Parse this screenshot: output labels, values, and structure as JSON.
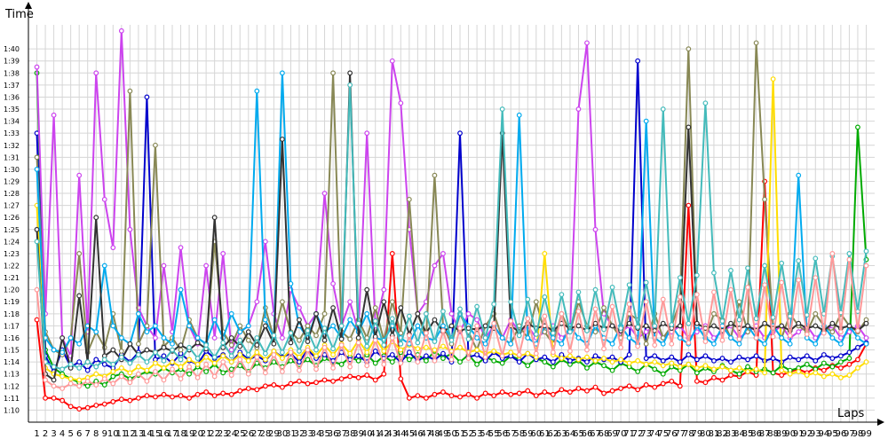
{
  "chart_data": {
    "type": "line",
    "ylabel": "Time",
    "xlabel": "Laps",
    "yticks": [
      "1:10",
      "1:11",
      "1:12",
      "1:13",
      "1:14",
      "1:15",
      "1:16",
      "1:17",
      "1:18",
      "1:19",
      "1:20",
      "1:21",
      "1:22",
      "1:23",
      "1:24",
      "1:25",
      "1:26",
      "1:27",
      "1:28",
      "1:29",
      "1:30",
      "1:31",
      "1:32",
      "1:33",
      "1:34",
      "1:35",
      "1:36",
      "1:37",
      "1:38",
      "1:39",
      "1:40"
    ],
    "ylim_seconds": [
      69,
      102
    ],
    "x": [
      1,
      2,
      3,
      4,
      5,
      6,
      7,
      8,
      9,
      10,
      11,
      12,
      13,
      14,
      15,
      16,
      17,
      18,
      19,
      20,
      21,
      22,
      23,
      24,
      25,
      26,
      27,
      28,
      29,
      30,
      31,
      32,
      33,
      34,
      35,
      36,
      37,
      38,
      39,
      40,
      41,
      42,
      43,
      44,
      45,
      46,
      47,
      48,
      49,
      50,
      51,
      52,
      53,
      54,
      55,
      56,
      57,
      58,
      59,
      60,
      61,
      62,
      63,
      64,
      65,
      66,
      67,
      68,
      69,
      70,
      71,
      72,
      73,
      74,
      75,
      76,
      77,
      78,
      79,
      80,
      81,
      82,
      83,
      84,
      85,
      86,
      87,
      88,
      89,
      90,
      91,
      92,
      93,
      94,
      95,
      96,
      97,
      98,
      99
    ],
    "xlim": [
      0,
      100
    ],
    "grid": true,
    "legend": "none",
    "series": [
      {
        "color": "#ff0000",
        "values": [
          77.5,
          71.0,
          71.0,
          70.8,
          70.3,
          70.1,
          70.2,
          70.4,
          70.5,
          70.7,
          70.9,
          70.8,
          71.0,
          71.2,
          71.1,
          71.3,
          71.1,
          71.2,
          71.0,
          71.3,
          71.5,
          71.2,
          71.4,
          71.3,
          71.6,
          71.8,
          71.7,
          72.0,
          72.1,
          71.9,
          72.2,
          72.4,
          72.2,
          72.3,
          72.5,
          72.4,
          72.6,
          72.8,
          72.7,
          72.9,
          72.5,
          73.0,
          83.0,
          72.6,
          71.0,
          71.2,
          71.0,
          71.3,
          71.5,
          71.2,
          71.1,
          71.3,
          71.0,
          71.4,
          71.2,
          71.5,
          71.3,
          71.4,
          71.6,
          71.2,
          71.5,
          71.3,
          71.7,
          71.5,
          71.8,
          71.6,
          71.9,
          71.4,
          71.6,
          71.8,
          72.0,
          71.7,
          72.1,
          71.9,
          72.2,
          72.4,
          72.0,
          87.0,
          72.4,
          72.3,
          72.7,
          72.5,
          72.9,
          72.8,
          73.2,
          72.9,
          89.0,
          73.1,
          72.9,
          73.2,
          73.4,
          73.1,
          73.5,
          73.3,
          73.7,
          73.5,
          73.8,
          74.2,
          75.5
        ]
      },
      {
        "color": "#00aa00",
        "values": [
          98.0,
          75.0,
          73.5,
          73.0,
          72.6,
          72.3,
          72.0,
          72.4,
          72.1,
          72.8,
          73.0,
          72.6,
          72.9,
          73.2,
          73.0,
          73.5,
          73.1,
          73.4,
          73.0,
          73.6,
          73.2,
          73.8,
          73.1,
          73.4,
          73.7,
          73.2,
          73.9,
          73.5,
          74.0,
          73.6,
          74.1,
          73.8,
          74.2,
          73.7,
          74.3,
          74.0,
          73.8,
          74.4,
          74.1,
          74.6,
          73.9,
          74.5,
          74.0,
          74.8,
          74.2,
          74.6,
          74.1,
          74.9,
          74.3,
          74.7,
          74.0,
          74.6,
          73.8,
          74.4,
          74.1,
          73.9,
          74.5,
          74.2,
          73.7,
          74.3,
          74.0,
          73.6,
          74.2,
          73.8,
          74.1,
          73.5,
          74.0,
          73.7,
          73.3,
          73.9,
          73.6,
          73.2,
          73.8,
          73.4,
          73.0,
          73.6,
          73.3,
          73.8,
          73.1,
          73.5,
          73.2,
          73.7,
          73.3,
          73.0,
          73.6,
          73.2,
          73.4,
          73.1,
          73.7,
          73.3,
          73.5,
          73.8,
          73.4,
          73.9,
          73.6,
          74.0,
          74.3,
          93.5,
          82.5
        ]
      },
      {
        "color": "#0000cc",
        "values": [
          93.0,
          74.5,
          73.2,
          75.0,
          73.6,
          74.0,
          73.3,
          74.2,
          73.8,
          73.5,
          74.6,
          74.0,
          74.8,
          96.0,
          74.2,
          74.5,
          73.9,
          74.7,
          74.1,
          73.8,
          74.9,
          74.3,
          74.6,
          74.0,
          74.8,
          74.2,
          74.5,
          74.1,
          74.9,
          74.4,
          74.7,
          74.0,
          75.0,
          74.3,
          74.6,
          74.1,
          74.8,
          74.2,
          74.5,
          74.0,
          74.9,
          74.3,
          74.6,
          74.0,
          74.8,
          74.1,
          74.5,
          74.2,
          74.7,
          74.0,
          93.0,
          74.4,
          74.6,
          74.1,
          74.8,
          74.3,
          74.5,
          74.0,
          74.7,
          74.2,
          74.4,
          74.0,
          74.6,
          74.1,
          74.3,
          74.0,
          74.5,
          74.2,
          74.4,
          74.0,
          74.6,
          99.0,
          74.3,
          74.5,
          74.1,
          74.4,
          74.0,
          74.6,
          74.2,
          74.5,
          74.1,
          74.3,
          74.0,
          74.4,
          74.2,
          74.5,
          74.1,
          74.3,
          74.0,
          74.4,
          74.2,
          74.5,
          74.1,
          74.6,
          74.3,
          74.5,
          74.8,
          75.2,
          75.6
        ]
      },
      {
        "color": "#cc44ee",
        "values": [
          98.5,
          78.0,
          94.5,
          76.0,
          74.5,
          89.5,
          76.5,
          98.0,
          87.5,
          83.5,
          101.5,
          85.0,
          78.5,
          77.0,
          76.0,
          82.0,
          76.5,
          83.5,
          77.0,
          75.5,
          82.0,
          76.0,
          83.0,
          75.0,
          76.5,
          77.0,
          79.0,
          84.0,
          78.0,
          76.0,
          80.0,
          78.5,
          77.0,
          78.0,
          88.0,
          80.5,
          77.0,
          79.0,
          76.5,
          93.0,
          77.0,
          80.0,
          99.0,
          95.5,
          85.0,
          78.0,
          79.0,
          82.0,
          83.0,
          78.0,
          76.5,
          78.0,
          77.5,
          76.0,
          77.0,
          76.0,
          77.5,
          76.5,
          77.0,
          76.0,
          76.5,
          77.0,
          76.0,
          76.5,
          95.0,
          100.5,
          85.0,
          78.0,
          77.0,
          76.5,
          77.0,
          76.0,
          76.5,
          77.0,
          76.0,
          76.5,
          77.0,
          76.0,
          76.5,
          77.0,
          76.0,
          76.5,
          77.0,
          76.0,
          76.5,
          77.0,
          76.0,
          76.5,
          77.0,
          76.0,
          76.5,
          77.0,
          76.0,
          76.5,
          77.0,
          76.0,
          76.5,
          77.0,
          76.0
        ]
      },
      {
        "color": "#888855",
        "values": [
          91.0,
          76.5,
          75.0,
          74.6,
          76.0,
          83.0,
          74.8,
          76.5,
          75.2,
          78.0,
          74.9,
          96.5,
          75.5,
          77.0,
          92.0,
          75.3,
          76.0,
          75.0,
          77.5,
          76.0,
          75.5,
          84.0,
          76.5,
          75.4,
          77.0,
          75.8,
          75.2,
          78.5,
          76.0,
          79.0,
          76.5,
          75.8,
          77.0,
          76.2,
          78.0,
          98.0,
          76.5,
          75.9,
          77.5,
          76.0,
          78.5,
          75.8,
          79.0,
          76.4,
          87.5,
          78.0,
          76.0,
          89.5,
          77.0,
          75.5,
          78.0,
          76.5,
          75.0,
          77.0,
          78.0,
          76.0,
          75.5,
          77.0,
          76.0,
          79.0,
          76.5,
          75.5,
          78.0,
          76.5,
          79.0,
          77.0,
          76.5,
          78.5,
          77.0,
          76.0,
          78.0,
          77.5,
          75.5,
          78.0,
          76.0,
          77.0,
          79.0,
          100.0,
          77.0,
          76.0,
          78.0,
          77.5,
          76.0,
          79.0,
          76.5,
          100.5,
          87.5,
          77.0,
          76.0,
          78.0,
          77.0,
          76.5,
          78.0,
          77.0,
          76.5,
          78.0,
          77.0,
          76.5,
          77.5
        ]
      },
      {
        "color": "#ffdd00",
        "values": [
          87.0,
          73.5,
          73.0,
          72.8,
          72.6,
          72.5,
          72.7,
          73.0,
          72.8,
          73.2,
          73.5,
          73.1,
          73.6,
          73.3,
          73.9,
          73.5,
          74.0,
          73.6,
          74.2,
          73.8,
          74.4,
          73.9,
          74.5,
          74.0,
          74.6,
          74.1,
          74.8,
          74.2,
          74.9,
          74.3,
          75.0,
          74.4,
          75.2,
          74.5,
          75.4,
          74.6,
          75.5,
          74.7,
          75.8,
          74.8,
          76.0,
          74.9,
          75.7,
          75.0,
          75.4,
          75.1,
          75.2,
          75.0,
          75.3,
          74.9,
          75.2,
          74.8,
          75.0,
          74.7,
          74.9,
          74.6,
          74.8,
          74.5,
          74.7,
          74.4,
          83.0,
          74.6,
          74.3,
          74.5,
          74.2,
          74.4,
          74.1,
          74.3,
          74.0,
          74.2,
          73.9,
          74.1,
          73.8,
          74.0,
          73.7,
          73.9,
          73.6,
          73.8,
          73.5,
          73.7,
          73.4,
          73.6,
          73.3,
          73.5,
          73.2,
          73.4,
          73.1,
          97.5,
          73.3,
          73.0,
          73.2,
          72.9,
          73.1,
          72.8,
          73.0,
          72.7,
          72.9,
          73.5,
          74.0
        ]
      },
      {
        "color": "#00aaee",
        "values": [
          90.0,
          76.0,
          75.0,
          74.8,
          76.0,
          75.5,
          77.0,
          76.5,
          82.0,
          77.0,
          76.0,
          75.5,
          78.0,
          76.5,
          77.0,
          76.0,
          75.5,
          80.0,
          77.0,
          76.0,
          75.5,
          77.5,
          76.0,
          78.0,
          76.5,
          77.0,
          96.5,
          77.5,
          76.0,
          98.0,
          80.5,
          77.0,
          76.0,
          78.0,
          76.5,
          77.0,
          76.0,
          77.5,
          76.5,
          78.0,
          76.0,
          75.8,
          77.0,
          76.0,
          75.5,
          77.0,
          76.0,
          75.8,
          77.0,
          76.0,
          78.0,
          77.0,
          76.0,
          75.5,
          77.0,
          76.0,
          75.5,
          94.5,
          76.0,
          75.5,
          77.0,
          76.0,
          75.5,
          77.0,
          76.0,
          75.5,
          77.0,
          76.0,
          75.5,
          77.0,
          76.0,
          75.5,
          94.0,
          76.0,
          75.5,
          77.0,
          76.0,
          75.5,
          77.0,
          76.0,
          75.5,
          77.0,
          76.0,
          75.5,
          77.0,
          76.0,
          75.5,
          77.0,
          76.0,
          75.5,
          89.5,
          76.0,
          75.5,
          77.0,
          76.0,
          75.5,
          77.0,
          76.0,
          75.5
        ]
      },
      {
        "color": "#333333",
        "values": [
          85.0,
          73.0,
          72.5,
          76.0,
          73.5,
          79.5,
          74.0,
          86.0,
          74.5,
          75.0,
          74.2,
          75.5,
          74.6,
          75.0,
          74.8,
          75.2,
          74.9,
          75.4,
          75.0,
          75.6,
          75.1,
          86.0,
          75.2,
          76.0,
          75.3,
          76.5,
          75.4,
          77.0,
          75.5,
          92.5,
          75.6,
          77.5,
          75.7,
          78.0,
          75.8,
          78.5,
          75.9,
          98.0,
          76.0,
          80.0,
          76.1,
          79.0,
          76.2,
          78.5,
          76.3,
          78.0,
          76.4,
          77.5,
          76.5,
          77.0,
          76.6,
          76.8,
          76.7,
          77.0,
          76.8,
          93.0,
          77.0,
          76.5,
          77.2,
          76.8,
          77.0,
          76.6,
          77.2,
          76.8,
          77.0,
          76.6,
          77.2,
          76.8,
          77.0,
          76.6,
          77.2,
          76.8,
          77.0,
          76.6,
          77.2,
          76.8,
          77.0,
          93.5,
          77.2,
          76.8,
          77.0,
          76.6,
          77.2,
          76.8,
          77.0,
          76.6,
          77.2,
          76.8,
          77.0,
          76.6,
          77.2,
          76.8,
          77.0,
          76.6,
          77.2,
          76.8,
          77.0,
          76.6,
          77.2
        ]
      },
      {
        "color": "#44bbbb",
        "values": [
          84.0,
          74.0,
          73.6,
          73.4,
          73.8,
          73.5,
          74.0,
          73.6,
          74.2,
          73.8,
          74.4,
          73.9,
          74.6,
          74.0,
          74.8,
          74.1,
          75.0,
          74.2,
          75.2,
          74.3,
          75.4,
          74.4,
          75.6,
          74.5,
          75.8,
          74.6,
          76.0,
          74.7,
          76.2,
          74.8,
          76.4,
          74.9,
          76.6,
          75.0,
          76.8,
          75.1,
          77.0,
          97.0,
          77.2,
          75.3,
          77.4,
          75.4,
          77.6,
          75.5,
          77.8,
          75.6,
          78.0,
          75.7,
          78.2,
          75.8,
          78.4,
          75.9,
          78.6,
          76.0,
          78.8,
          95.0,
          79.0,
          76.2,
          79.2,
          76.3,
          79.4,
          76.4,
          79.6,
          76.5,
          79.8,
          76.6,
          80.0,
          76.7,
          80.2,
          76.8,
          80.4,
          76.9,
          80.6,
          77.0,
          95.0,
          77.1,
          81.0,
          77.2,
          81.2,
          95.5,
          81.4,
          77.4,
          81.6,
          77.5,
          81.8,
          77.6,
          82.0,
          77.7,
          82.2,
          77.8,
          82.4,
          77.9,
          82.6,
          78.0,
          82.8,
          78.1,
          83.0,
          78.2,
          83.2
        ]
      },
      {
        "color": "#ff9999",
        "values": [
          80.0,
          72.5,
          72.0,
          71.8,
          72.2,
          72.0,
          72.4,
          72.1,
          72.6,
          72.2,
          72.8,
          72.3,
          73.0,
          72.4,
          73.2,
          72.5,
          73.4,
          72.6,
          73.6,
          72.7,
          73.8,
          72.8,
          74.0,
          72.9,
          74.2,
          73.0,
          74.4,
          73.1,
          74.6,
          73.2,
          74.8,
          73.3,
          75.0,
          73.4,
          75.2,
          73.5,
          75.4,
          73.6,
          75.6,
          73.7,
          75.8,
          73.8,
          76.0,
          73.9,
          76.2,
          74.0,
          76.4,
          74.1,
          76.6,
          74.2,
          76.8,
          74.3,
          77.0,
          74.4,
          77.2,
          74.5,
          77.4,
          74.6,
          77.6,
          74.7,
          77.8,
          74.8,
          78.0,
          74.9,
          78.2,
          75.0,
          78.4,
          75.1,
          78.6,
          75.2,
          78.8,
          75.3,
          79.0,
          75.4,
          79.2,
          75.5,
          79.4,
          75.6,
          79.6,
          75.7,
          79.8,
          75.8,
          80.0,
          75.9,
          80.2,
          76.0,
          80.4,
          76.1,
          80.6,
          76.2,
          80.8,
          76.3,
          81.0,
          76.4,
          83.0,
          76.5,
          82.5,
          76.6,
          82.0
        ]
      }
    ]
  }
}
